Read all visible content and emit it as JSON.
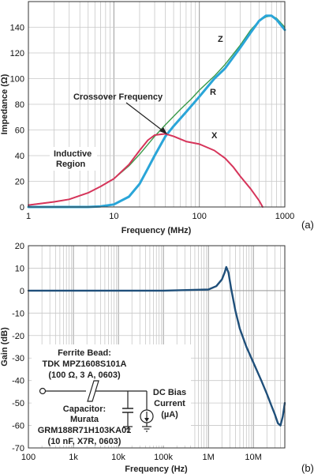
{
  "chart_data": [
    {
      "type": "line",
      "panel_label": "(a)",
      "xlabel": "Frequency (MHz)",
      "ylabel": "Impedance (Ω)",
      "xscale": "log",
      "xlim": [
        1,
        1000
      ],
      "ylim": [
        0,
        160
      ],
      "x_ticks": [
        "1",
        "10",
        "100",
        "1000"
      ],
      "y_ticks": [
        "0",
        "20",
        "40",
        "60",
        "80",
        "100",
        "120",
        "140"
      ],
      "grid": true,
      "series": [
        {
          "name": "Z",
          "color": "#3a9a4a",
          "x": [
            1,
            2,
            3,
            5,
            7,
            10,
            15,
            20,
            30,
            40,
            60,
            80,
            100,
            150,
            200,
            300,
            400,
            500,
            600,
            700,
            800,
            1000
          ],
          "y": [
            1.5,
            4,
            6,
            11,
            16,
            22,
            32,
            41,
            55,
            64,
            76,
            84,
            91,
            102,
            111,
            126,
            138,
            145,
            148,
            149,
            147,
            140
          ]
        },
        {
          "name": "R",
          "color": "#2aa5d8",
          "x": [
            1,
            3,
            5,
            7,
            10,
            15,
            20,
            25,
            30,
            40,
            50,
            70,
            100,
            150,
            200,
            300,
            400,
            500,
            600,
            700,
            800,
            1000
          ],
          "y": [
            0,
            0,
            0,
            0.5,
            2,
            8,
            18,
            30,
            40,
            55,
            63,
            74,
            86,
            100,
            108,
            124,
            136,
            145,
            149,
            149,
            146,
            138
          ]
        },
        {
          "name": "X",
          "color": "#d6345a",
          "x": [
            1,
            2,
            3,
            5,
            7,
            10,
            15,
            20,
            25,
            30,
            40,
            50,
            70,
            100,
            150,
            200,
            250,
            300,
            400,
            500,
            550
          ],
          "y": [
            1.5,
            4,
            6,
            11,
            16,
            22,
            33,
            44,
            52,
            56,
            57,
            55,
            51,
            49,
            44,
            38,
            31,
            24,
            14,
            5,
            0
          ]
        }
      ],
      "annotations": [
        "Crossover Frequency",
        "Inductive",
        "Region"
      ]
    },
    {
      "type": "line",
      "panel_label": "(b)",
      "xlabel": "Frequency (Hz)",
      "ylabel": "Gain (dB)",
      "xscale": "log",
      "xlim": [
        100,
        50000000
      ],
      "ylim": [
        -70,
        20
      ],
      "x_ticks": [
        "100",
        "1k",
        "10k",
        "100k",
        "1M",
        "10M"
      ],
      "y_ticks": [
        "20",
        "10",
        "0",
        "-10",
        "-20",
        "-30",
        "-40",
        "-50",
        "-60",
        "-70"
      ],
      "grid": true,
      "series": [
        {
          "color": "#1f4f7a",
          "x": [
            100,
            1000,
            10000,
            100000,
            1000000,
            1500000,
            2000000,
            2300000,
            2500000,
            2800000,
            3200000,
            4000000,
            5000000,
            7000000,
            10000000,
            15000000,
            20000000,
            25000000,
            30000000,
            35000000,
            40000000,
            45000000,
            50000000
          ],
          "y": [
            0,
            0,
            0,
            0,
            0.5,
            2,
            5,
            8,
            10.5,
            8,
            1,
            -9,
            -17,
            -25,
            -32,
            -40,
            -46,
            -51,
            -55,
            -59,
            -60,
            -56,
            -50
          ]
        }
      ],
      "inset": {
        "lines": [
          "Ferrite Bead:",
          "TDK MPZ1608S101A",
          "(100 Ω, 3 A, 0603)",
          "Capacitor:",
          "Murata",
          "GRM188R71H103KA01",
          "(10 nF, X7R, 0603)",
          "DC Bias",
          "Current",
          "(µA)"
        ]
      }
    }
  ]
}
